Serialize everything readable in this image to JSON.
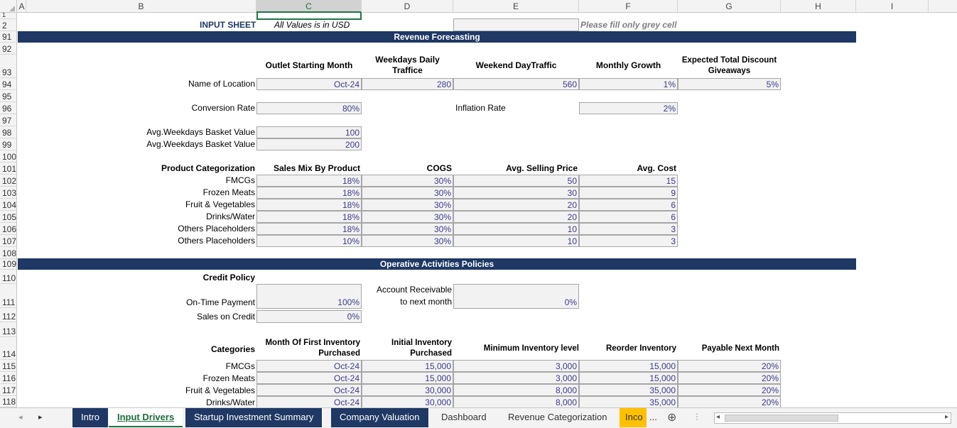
{
  "columns": [
    "A",
    "B",
    "C",
    "D",
    "E",
    "F",
    "G",
    "H",
    "I"
  ],
  "rows": [
    "1",
    "2",
    "91",
    "92",
    "93",
    "94",
    "95",
    "96",
    "97",
    "98",
    "99",
    "100",
    "101",
    "102",
    "103",
    "104",
    "105",
    "106",
    "107",
    "108",
    "109",
    "110",
    "111",
    "112",
    "113",
    "114",
    "115",
    "116",
    "117",
    "118"
  ],
  "top": {
    "input_sheet": "INPUT SHEET",
    "usd_note": "All Values is in USD",
    "fill_note": "Please fill only grey cell"
  },
  "bands": {
    "revenue": "Revenue Forecasting",
    "operative": "Operative Activities Policies"
  },
  "revenue": {
    "headers": [
      "Outlet Starting Month",
      "Weekdays Daily Traffice",
      "Weekend DayTraffic",
      "Monthly Growth",
      "Expected Total Discount Giveaways"
    ],
    "location_label": "Name of Location",
    "location_values": [
      "Oct-24",
      "280",
      "560",
      "1%",
      "5%"
    ],
    "conversion_label": "Conversion Rate",
    "conversion_value": "80%",
    "inflation_label": "Inflation Rate",
    "inflation_value": "2%",
    "basket_labels": [
      "Avg.Weekdays Basket Value",
      "Avg.Weekdays Basket Value"
    ],
    "basket_values": [
      "100",
      "200"
    ]
  },
  "products": {
    "headers": [
      "Product Categorization",
      "Sales Mix By Product",
      "COGS",
      "Avg. Selling Price",
      "Avg. Cost"
    ],
    "rows": [
      {
        "name": "FMCGs",
        "mix": "18%",
        "cogs": "30%",
        "price": "50",
        "cost": "15"
      },
      {
        "name": "Frozen Meats",
        "mix": "18%",
        "cogs": "30%",
        "price": "30",
        "cost": "9"
      },
      {
        "name": "Fruit & Vegetables",
        "mix": "18%",
        "cogs": "30%",
        "price": "20",
        "cost": "6"
      },
      {
        "name": "Drinks/Water",
        "mix": "18%",
        "cogs": "30%",
        "price": "20",
        "cost": "6"
      },
      {
        "name": "Others Placeholders",
        "mix": "18%",
        "cogs": "30%",
        "price": "10",
        "cost": "3"
      },
      {
        "name": "Others Placeholders",
        "mix": "10%",
        "cogs": "30%",
        "price": "10",
        "cost": "3"
      }
    ]
  },
  "credit": {
    "title": "Credit Policy",
    "ontime_label": "On-Time Payment",
    "ontime_value": "100%",
    "credit_label": "Sales on Credit",
    "credit_value": "0%",
    "ar_label_1": "Account Receivable",
    "ar_label_2": "to next month",
    "ar_value": "0%"
  },
  "inventory": {
    "headers": [
      "Categories",
      "Month Of First Inventory Purchased",
      "Initial Inventory Purchased",
      "Minimum Inventory level",
      "Reorder Inventory",
      "Payable Next Month"
    ],
    "rows": [
      {
        "name": "FMCGs",
        "month": "Oct-24",
        "initial": "15,000",
        "min": "3,000",
        "reorder": "15,000",
        "payable": "20%"
      },
      {
        "name": "Frozen Meats",
        "month": "Oct-24",
        "initial": "15,000",
        "min": "3,000",
        "reorder": "15,000",
        "payable": "20%"
      },
      {
        "name": "Fruit & Vegetables",
        "month": "Oct-24",
        "initial": "30,000",
        "min": "8,000",
        "reorder": "35,000",
        "payable": "20%"
      },
      {
        "name": "Drinks/Water",
        "month": "Oct-24",
        "initial": "30,000",
        "min": "8,000",
        "reorder": "35,000",
        "payable": "20%"
      }
    ]
  },
  "tabs": [
    "Intro",
    "Input Drivers",
    "Startup Investment Summary",
    "Company Valuation",
    "Dashboard",
    "Revenue Categorization",
    "Inco"
  ],
  "tab_more": "...",
  "add_sheet": "⊕",
  "nav_prev": "◂",
  "nav_next": "▸",
  "scroll_left": "◂",
  "scroll_right": "▸",
  "colors": {
    "band": "#1f3864",
    "accent": "#217346",
    "input_bg": "#f2f2f2",
    "orange_tab": "#ffc000"
  }
}
